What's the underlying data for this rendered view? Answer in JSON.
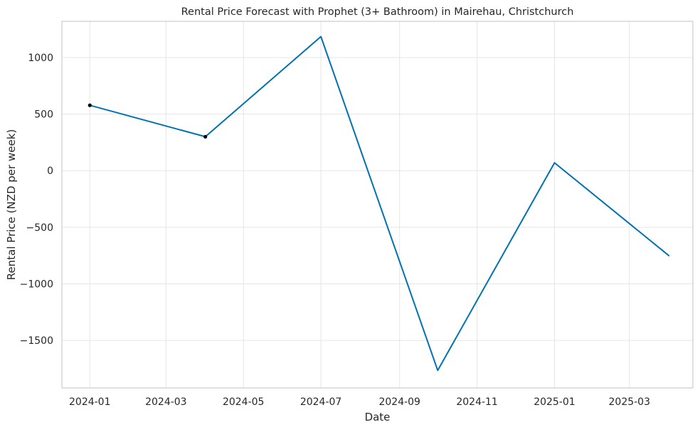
{
  "chart_data": {
    "type": "line",
    "title": "Rental Price Forecast with Prophet (3+ Bathroom) in Mairehau, Christchurch",
    "xlabel": "Date",
    "ylabel": "Rental Price (NZD per week)",
    "x_ticks": [
      "2024-01",
      "2024-03",
      "2024-05",
      "2024-07",
      "2024-09",
      "2024-11",
      "2025-01",
      "2025-03"
    ],
    "y_ticks": [
      -1500,
      -1000,
      -500,
      0,
      500,
      1000
    ],
    "xlim": [
      "2023-12-10",
      "2025-04-20"
    ],
    "ylim": [
      -1920,
      1320
    ],
    "grid": true,
    "series": [
      {
        "color": "#0072b2",
        "x": [
          "2024-01-01",
          "2024-04-01",
          "2024-07-01",
          "2024-10-01",
          "2025-01-01",
          "2025-04-01"
        ],
        "values": [
          578,
          300,
          1185,
          -1765,
          70,
          -750
        ]
      }
    ],
    "observed_points": {
      "color": "#000000",
      "x": [
        "2024-01-01",
        "2024-04-01"
      ],
      "values": [
        578,
        300
      ]
    }
  }
}
